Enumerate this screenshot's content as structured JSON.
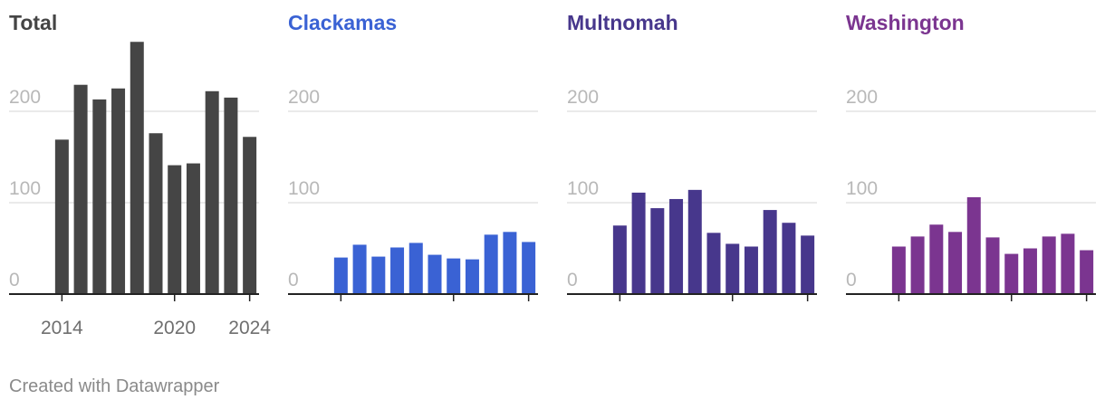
{
  "chart_data": [
    {
      "type": "bar",
      "title": "Total",
      "color": "#454545",
      "x": [
        2014,
        2015,
        2016,
        2017,
        2018,
        2019,
        2020,
        2021,
        2022,
        2023,
        2024
      ],
      "values": [
        169,
        229,
        213,
        225,
        276,
        176,
        141,
        143,
        222,
        215,
        172
      ],
      "ylim": [
        0,
        260
      ],
      "yticks": [
        0,
        100,
        200
      ],
      "xtick_labels": [
        "2014",
        "2020",
        "2024"
      ],
      "grid": true
    },
    {
      "type": "bar",
      "title": "Clackamas",
      "color": "#3a62d4",
      "x": [
        2014,
        2015,
        2016,
        2017,
        2018,
        2019,
        2020,
        2021,
        2022,
        2023,
        2024
      ],
      "values": [
        40,
        54,
        41,
        51,
        56,
        43,
        39,
        38,
        65,
        68,
        57
      ],
      "ylim": [
        0,
        260
      ],
      "yticks": [
        0,
        100,
        200
      ],
      "xtick_labels": [],
      "grid": true
    },
    {
      "type": "bar",
      "title": "Multnomah",
      "color": "#47378c",
      "x": [
        2014,
        2015,
        2016,
        2017,
        2018,
        2019,
        2020,
        2021,
        2022,
        2023,
        2024
      ],
      "values": [
        75,
        111,
        94,
        104,
        114,
        67,
        55,
        52,
        92,
        78,
        64
      ],
      "ylim": [
        0,
        260
      ],
      "yticks": [
        0,
        100,
        200
      ],
      "xtick_labels": [],
      "grid": true
    },
    {
      "type": "bar",
      "title": "Washington",
      "color": "#7b3590",
      "x": [
        2014,
        2015,
        2016,
        2017,
        2018,
        2019,
        2020,
        2021,
        2022,
        2023,
        2024
      ],
      "values": [
        52,
        63,
        76,
        68,
        106,
        62,
        44,
        50,
        63,
        66,
        48
      ],
      "ylim": [
        0,
        260
      ],
      "yticks": [
        0,
        100,
        200
      ],
      "xtick_labels": [],
      "grid": true
    }
  ],
  "footer": "Created with Datawrapper"
}
